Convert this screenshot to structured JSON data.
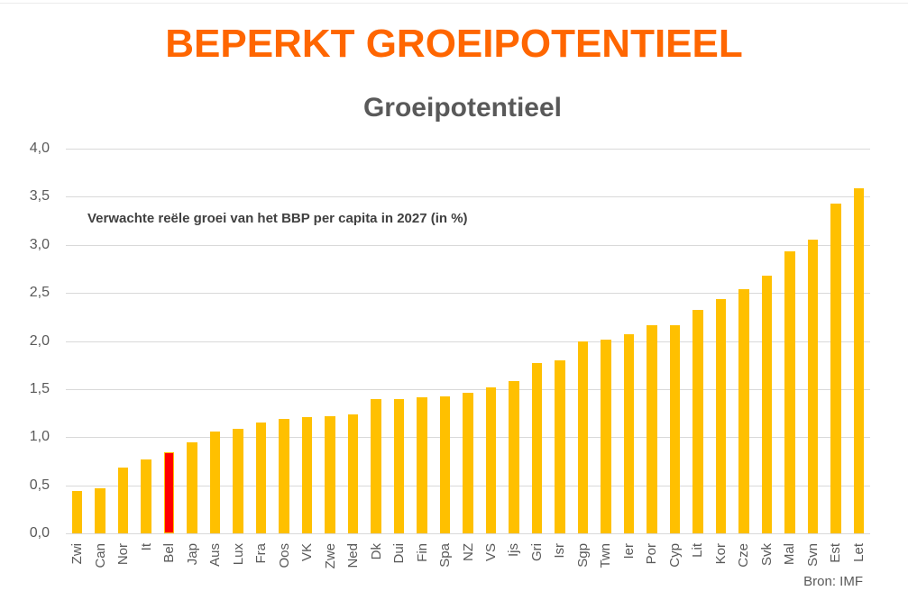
{
  "page_title": "BEPERKT GROEIPOTENTIEEL",
  "colors": {
    "title": "#FF6600",
    "subtitle": "#595959",
    "annotation": "#404040",
    "axis_text": "#595959",
    "gridline": "#D9D9D9",
    "bar": "#FFC000",
    "highlight": "#FF0000",
    "background": "#FFFFFF"
  },
  "chart_data": {
    "type": "bar",
    "title": "Groeipotentieel",
    "annotation": "Verwachte reële groei van het BBP per capita in 2027 (in %)",
    "source": "Bron: IMF",
    "categories": [
      "Zwi",
      "Can",
      "Nor",
      "It",
      "Bel",
      "Jap",
      "Aus",
      "Lux",
      "Fra",
      "Oos",
      "VK",
      "Zwe",
      "Ned",
      "Dk",
      "Dui",
      "Fin",
      "Spa",
      "NZ",
      "VS",
      "Ijs",
      "Gri",
      "Isr",
      "Sgp",
      "Twn",
      "Ier",
      "Por",
      "Cyp",
      "Lit",
      "Kor",
      "Cze",
      "Svk",
      "Mal",
      "Svn",
      "Est",
      "Let"
    ],
    "values": [
      0.44,
      0.47,
      0.68,
      0.77,
      0.84,
      0.95,
      1.06,
      1.09,
      1.15,
      1.19,
      1.21,
      1.22,
      1.24,
      1.4,
      1.4,
      1.41,
      1.42,
      1.46,
      1.52,
      1.58,
      1.77,
      1.8,
      2.0,
      2.01,
      2.07,
      2.16,
      2.16,
      2.32,
      2.44,
      2.54,
      2.68,
      2.93,
      3.05,
      3.43,
      3.59
    ],
    "highlight_category": "Bel",
    "xlabel": "",
    "ylabel": "",
    "ylim": [
      0,
      4
    ],
    "ytick_step": 0.5,
    "ytick_labels": [
      "4,0",
      "3,5",
      "3,0",
      "2,5",
      "2,0",
      "1,5",
      "1,0",
      "0,5",
      "0,0"
    ],
    "grid": true,
    "legend": "none"
  }
}
